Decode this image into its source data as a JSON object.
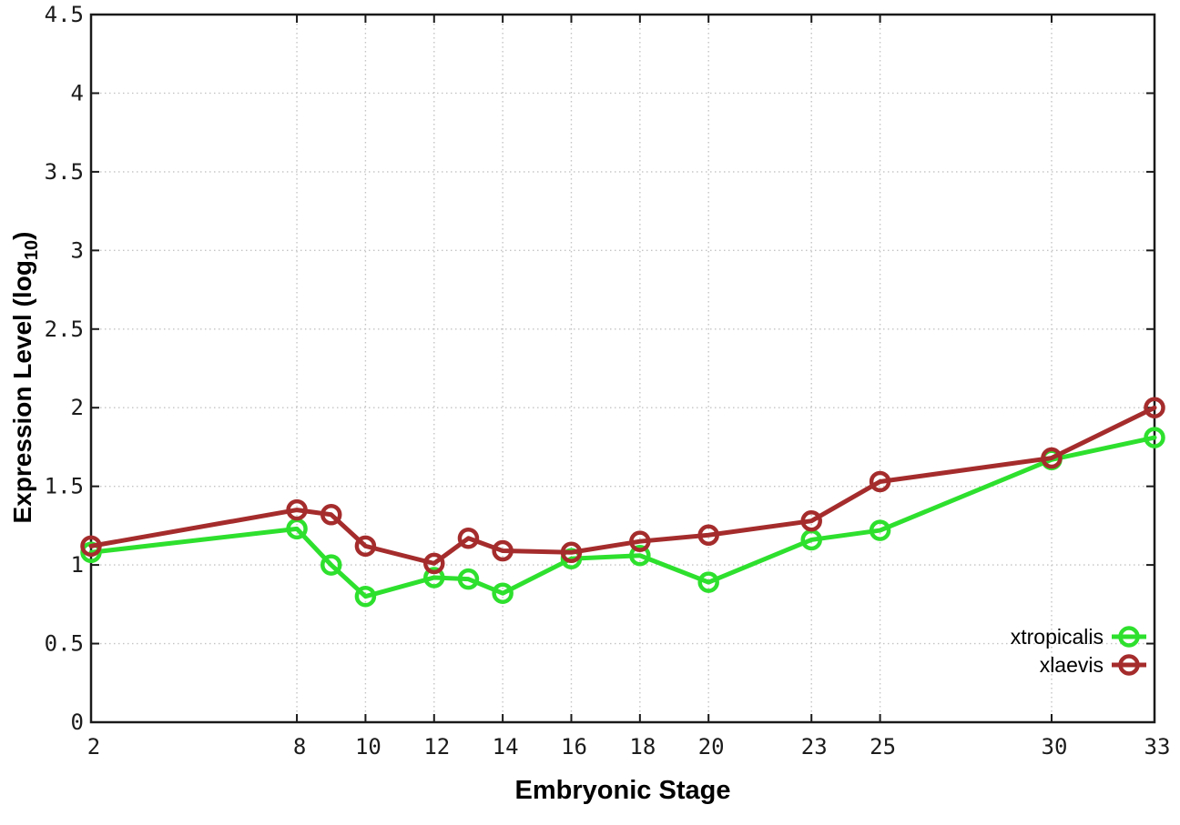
{
  "chart_data": {
    "type": "line",
    "title": "",
    "xlabel": "Embryonic Stage",
    "ylabel": "Expression Level (log10)",
    "ylabel_parts": {
      "prefix": "Expression Level (log",
      "sub": "10",
      "suffix": ")"
    },
    "x": [
      2,
      8,
      9,
      10,
      12,
      13,
      14,
      16,
      18,
      20,
      23,
      25,
      30,
      33
    ],
    "xticks": [
      2,
      8,
      10,
      12,
      14,
      16,
      18,
      20,
      23,
      25,
      30,
      33
    ],
    "yticks": [
      0,
      0.5,
      1,
      1.5,
      2,
      2.5,
      3,
      3.5,
      4,
      4.5
    ],
    "xlim": [
      2,
      33
    ],
    "ylim": [
      0,
      4.5
    ],
    "grid": true,
    "legend_position": "inside-bottom-right",
    "series": [
      {
        "name": "xtropicalis",
        "color": "#2ee02e",
        "values": [
          1.08,
          1.23,
          1.0,
          0.8,
          0.92,
          0.91,
          0.82,
          1.04,
          1.06,
          0.89,
          1.16,
          1.22,
          1.67,
          1.81
        ]
      },
      {
        "name": "xlaevis",
        "color": "#a52c2c",
        "values": [
          1.12,
          1.35,
          1.32,
          1.12,
          1.01,
          1.17,
          1.09,
          1.08,
          1.15,
          1.19,
          1.28,
          1.53,
          1.68,
          2.0
        ]
      }
    ],
    "style": {
      "background": "#ffffff",
      "axis_color": "#1a1a1a",
      "grid_color": "#c4c4c4",
      "marker": "open-circle"
    }
  }
}
